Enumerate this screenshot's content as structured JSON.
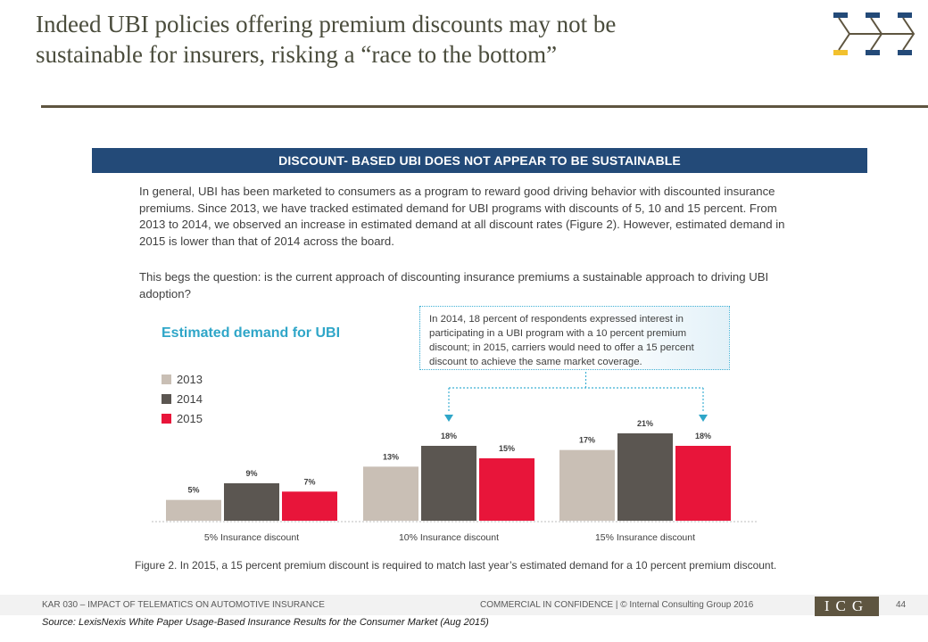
{
  "slide": {
    "title_lines": [
      "Indeed UBI policies offering premium discounts may not be",
      "sustainable  for insurers, risking a “race to the bottom”"
    ],
    "banner": "DISCOUNT- BASED UBI DOES NOT APPEAR TO BE SUSTAINABLE",
    "paragraph1": "In general, UBI has been marketed to consumers as a program to reward good driving behavior with discounted insurance premiums. Since 2013, we have tracked estimated demand for UBI programs with discounts of 5, 10 and 15 percent. From 2013 to 2014, we observed an increase in estimated demand at all discount rates (Figure 2). However, estimated demand in 2015 is lower than that of 2014 across the board.",
    "paragraph2": "This begs the question: is the current approach of discounting insurance premiums a sustainable approach to driving UBI adoption?",
    "callout_lines": [
      "In 2014, 18 percent of respondents expressed interest in",
      "participating in a UBI program with a 10 percent premium",
      "discount; in 2015, carriers would need to offer a 15 percent",
      "discount to achieve the same market coverage."
    ],
    "caption": "Figure 2. In 2015, a 15 percent premium discount is required to match last year’s estimated demand for a 10 percent premium discount.",
    "colors": {
      "banner": "#234a78",
      "chart_title": "#2fa6c8",
      "rule": "#5e5540",
      "logo_gold": "#f2c12e",
      "logo_blue": "#234a78"
    }
  },
  "footer": {
    "left": "KAR 030 – IMPACT OF TELEMATICS ON AUTOMOTIVE INSURANCE",
    "mid": "COMMERCIAL IN CONFIDENCE  |  © Internal Consulting Group 2016",
    "logo": "ICG",
    "page": "44",
    "source": "Source: LexisNexis White Paper Usage-Based Insurance Results for the Consumer Market (Aug 2015)"
  },
  "chart_data": {
    "type": "bar",
    "title": "Estimated demand for UBI",
    "categories": [
      "5% Insurance discount",
      "10% Insurance discount",
      "15% Insurance discount"
    ],
    "series": [
      {
        "name": "2013",
        "color": "#c9bfb5",
        "values": [
          5,
          13,
          17
        ]
      },
      {
        "name": "2014",
        "color": "#5b5651",
        "values": [
          9,
          18,
          21
        ]
      },
      {
        "name": "2015",
        "color": "#e8153a",
        "values": [
          7,
          15,
          18
        ]
      }
    ],
    "value_suffix": "%",
    "ylim": [
      0,
      21
    ],
    "legend_position": "left",
    "grid": false,
    "callout_arrows_on": [
      {
        "category": "10% Insurance discount",
        "series": "2014"
      },
      {
        "category": "15% Insurance discount",
        "series": "2015"
      }
    ]
  }
}
